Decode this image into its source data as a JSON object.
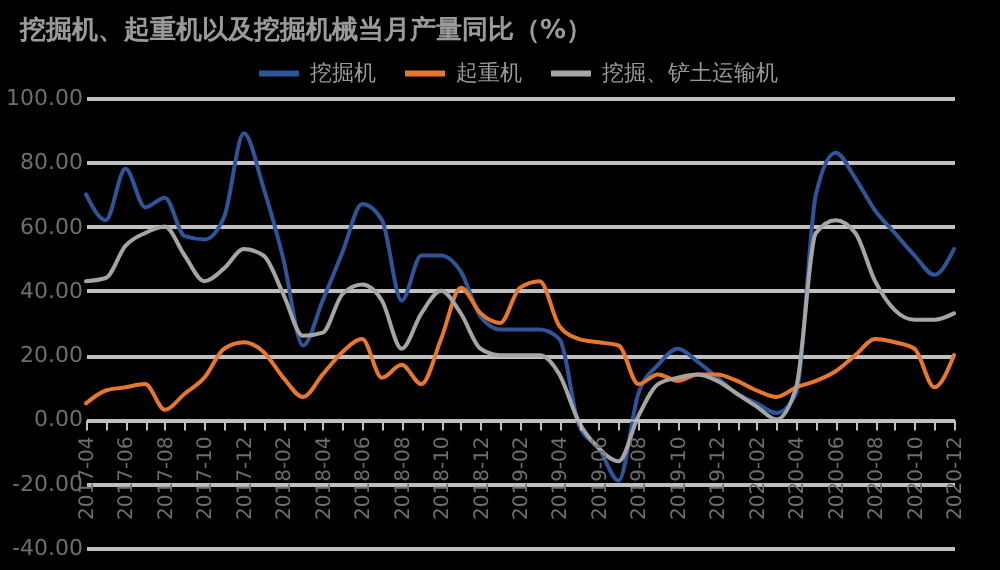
{
  "chart_data": {
    "type": "line",
    "title": "挖掘机、起重机以及挖掘机械当月产量同比（%）",
    "categories": [
      "2017-04",
      null,
      "2017-06",
      null,
      "2017-08",
      null,
      "2017-10",
      null,
      "2017-12",
      null,
      "2018-02",
      null,
      "2018-04",
      null,
      "2018-06",
      null,
      "2018-08",
      null,
      "2018-10",
      null,
      "2018-12",
      null,
      "2019-02",
      null,
      "2019-04",
      null,
      "2019-06",
      null,
      "2019-08",
      null,
      "2019-10",
      null,
      "2019-12",
      null,
      "2020-02",
      null,
      "2020-04",
      null,
      "2020-06",
      null,
      "2020-08",
      null,
      "2020-10",
      null,
      "2020-12"
    ],
    "series": [
      {
        "name": "挖掘机",
        "color": "#2e5597",
        "values": [
          70,
          62,
          78,
          66,
          69,
          57,
          56,
          63,
          89,
          72,
          50,
          23,
          37,
          52,
          67,
          62,
          37,
          51,
          51,
          46,
          32,
          28,
          28,
          28,
          25,
          -2,
          -9,
          -19,
          8,
          17,
          22,
          18,
          13,
          8,
          5,
          2,
          8,
          70,
          83,
          75,
          65,
          58,
          51,
          45,
          53
        ]
      },
      {
        "name": "起重机",
        "color": "#e8772e",
        "values": [
          5,
          9,
          10,
          11,
          3,
          8,
          13,
          22,
          24,
          21,
          13,
          7,
          14,
          21,
          25,
          13,
          17,
          11,
          25,
          41,
          33,
          30,
          41,
          43,
          29,
          25,
          24,
          23,
          11,
          14,
          12,
          14,
          14,
          12,
          9,
          7,
          10,
          12,
          15,
          20,
          25,
          24,
          22,
          10,
          20
        ]
      },
      {
        "name": "挖掘、铲土运输机",
        "color": "#a5a5a5",
        "values": [
          43,
          44,
          54,
          58,
          60,
          51,
          43,
          47,
          53,
          51,
          39,
          26,
          27,
          39,
          42,
          37,
          22,
          33,
          40,
          33,
          22,
          20,
          20,
          20,
          14,
          -1,
          -9,
          -13,
          1,
          11,
          13,
          14,
          12,
          8,
          4,
          0,
          10,
          58,
          62,
          58,
          43,
          34,
          31,
          31,
          33
        ]
      }
    ],
    "ylim": [
      -40,
      100
    ],
    "yticks": [
      {
        "value": -40,
        "label": "-40.00"
      },
      {
        "value": -20,
        "label": "-20.00"
      },
      {
        "value": 0,
        "label": "0.00"
      },
      {
        "value": 20,
        "label": "20.00"
      },
      {
        "value": 40,
        "label": "40.00"
      },
      {
        "value": 60,
        "label": "60.00"
      },
      {
        "value": 80,
        "label": "80.00"
      },
      {
        "value": 100,
        "label": "100.00"
      }
    ],
    "grid": "y",
    "legend": "top",
    "marker": "none",
    "line_style": "solid"
  }
}
